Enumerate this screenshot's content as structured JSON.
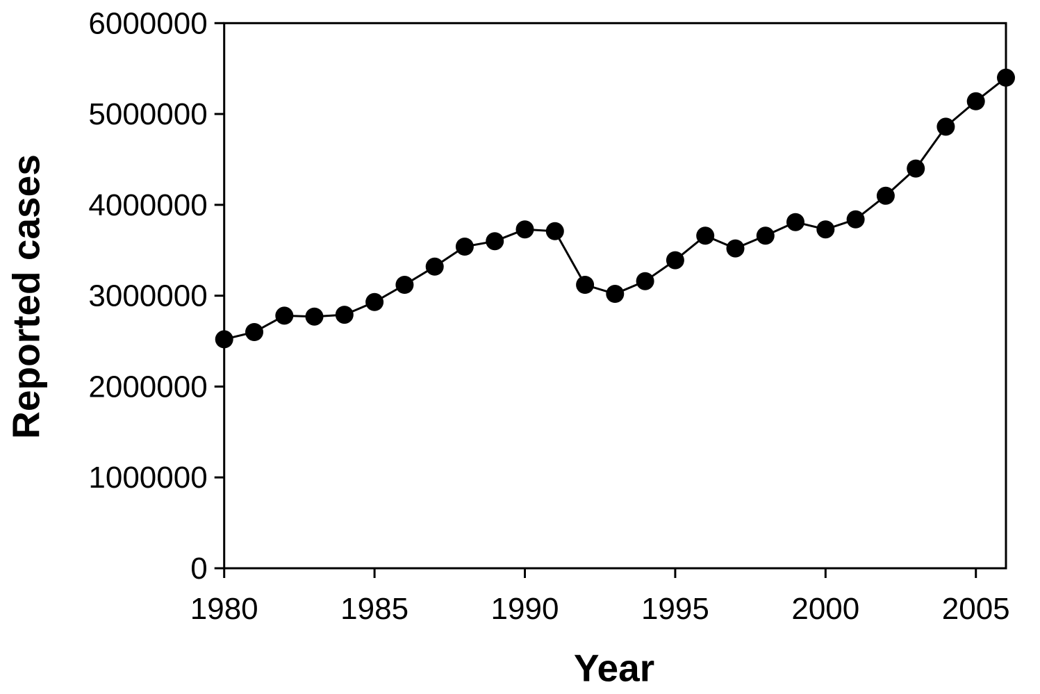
{
  "figure": {
    "background_color": "#ffffff",
    "foreground_color": "#000000"
  },
  "chart_data": {
    "type": "line",
    "title": "",
    "xlabel": "Year",
    "ylabel": "Reported cases",
    "x": [
      1980,
      1981,
      1982,
      1983,
      1984,
      1985,
      1986,
      1987,
      1988,
      1989,
      1990,
      1991,
      1992,
      1993,
      1994,
      1995,
      1996,
      1997,
      1998,
      1999,
      2000,
      2001,
      2002,
      2003,
      2004,
      2005,
      2006
    ],
    "series": [
      {
        "name": "Reported cases",
        "values": [
          2520000,
          2600000,
          2780000,
          2770000,
          2790000,
          2930000,
          3120000,
          3320000,
          3540000,
          3600000,
          3730000,
          3710000,
          3120000,
          3020000,
          3160000,
          3390000,
          3660000,
          3520000,
          3660000,
          3810000,
          3730000,
          3840000,
          4100000,
          4400000,
          4860000,
          5140000,
          5400000
        ]
      }
    ],
    "xlim": [
      1980,
      2006
    ],
    "ylim": [
      0,
      6000000
    ],
    "x_ticks": [
      1980,
      1985,
      1990,
      1995,
      2000,
      2005
    ],
    "x_tick_labels": [
      "1980",
      "1985",
      "1990",
      "1995",
      "2000",
      "2005"
    ],
    "y_ticks": [
      0,
      1000000,
      2000000,
      3000000,
      4000000,
      5000000,
      6000000
    ],
    "y_tick_labels": [
      "0",
      "1000000",
      "2000000",
      "3000000",
      "4000000",
      "5000000",
      "6000000"
    ],
    "grid": false,
    "legend_visible": false,
    "frame": "full-box",
    "marker": "circle",
    "marker_color": "#000000",
    "line_color": "#000000"
  }
}
